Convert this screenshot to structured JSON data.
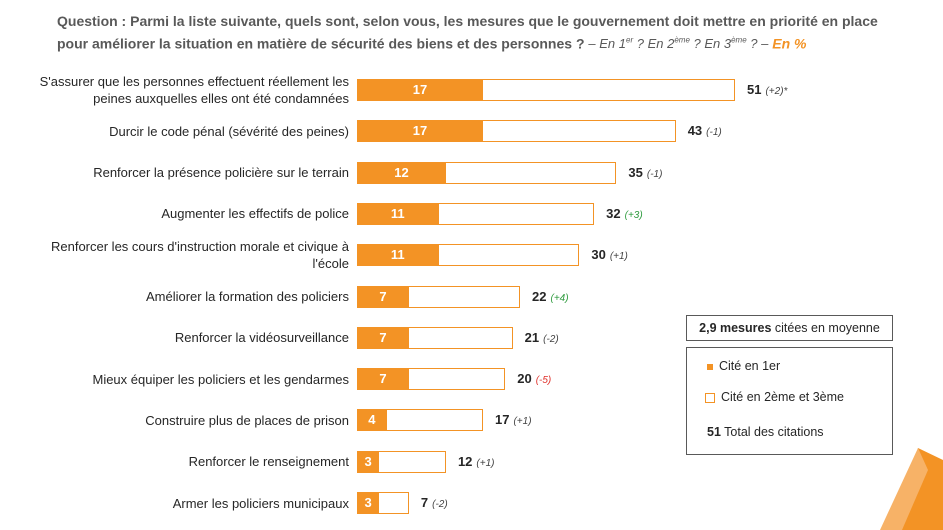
{
  "chart_data": {
    "type": "bar",
    "title": "Question : Parmi la liste suivante, quels sont, selon vous, les mesures que le gouvernement doit mettre en priorité en place pour améliorer la situation en matière de sécurité des biens et des personnes ?",
    "subtitle_parts": [
      "– En 1",
      "er",
      " ? En 2",
      "ème",
      " ? En 3",
      "ème",
      " ? –"
    ],
    "unit": "En %",
    "categories": [
      "S'assurer que les personnes effectuent réellement les peines auxquelles elles ont été condamnées",
      "Durcir le code pénal (sévérité des peines)",
      "Renforcer la présence policière sur le terrain",
      "Augmenter les effectifs de police",
      "Renforcer les cours d'instruction morale et civique à l'école",
      "Améliorer la formation des policiers",
      "Renforcer la vidéosurveillance",
      "Mieux équiper les policiers et les gendarmes",
      "Construire plus de places de prison",
      "Renforcer le renseignement",
      "Armer les policiers municipaux"
    ],
    "series": [
      {
        "name": "Cité en 1er",
        "color": "#f39325",
        "values": [
          17,
          17,
          12,
          11,
          11,
          7,
          7,
          7,
          4,
          3,
          3
        ]
      },
      {
        "name": "Cité en 2ème et 3ème",
        "color": "#ffffff",
        "border": "#f39325",
        "values": [
          34,
          26,
          23,
          21,
          19,
          15,
          14,
          13,
          13,
          9,
          4
        ]
      }
    ],
    "totals_name": "Total des citations",
    "totals": [
      51,
      43,
      35,
      32,
      30,
      22,
      21,
      20,
      17,
      12,
      7
    ],
    "changes": [
      "(+2)*",
      "(-1)",
      "(-1)",
      "(+3)",
      "(+1)",
      "(+4)",
      "(-2)",
      "(-5)",
      "(+1)",
      "(+1)",
      "(-2)"
    ],
    "change_colors": [
      "#404040",
      "#404040",
      "#404040",
      "#2e9b3e",
      "#404040",
      "#2e9b3e",
      "#404040",
      "#e0302a",
      "#404040",
      "#404040",
      "#404040"
    ],
    "xlim": [
      0,
      51
    ],
    "average_bold": "2,9 mesures",
    "average_text": "citées en moyenne",
    "total_example": "51"
  }
}
